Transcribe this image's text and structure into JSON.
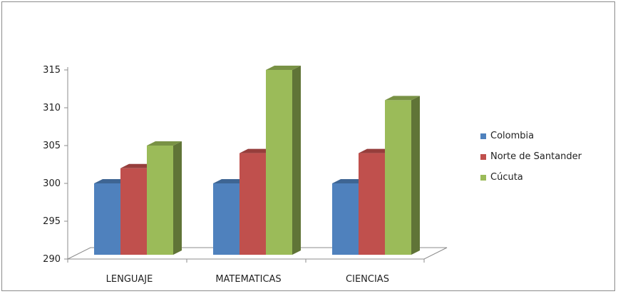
{
  "chart_data": {
    "type": "bar",
    "categories": [
      "LENGUAJE",
      "MATEMATICAS",
      "CIENCIAS"
    ],
    "series": [
      {
        "name": "Colombia",
        "values": [
          300,
          300,
          300
        ],
        "color": "#4F81BD"
      },
      {
        "name": "Norte de Santander",
        "values": [
          302,
          304,
          304
        ],
        "color": "#C0504D"
      },
      {
        "name": "Cúcuta",
        "values": [
          305,
          315,
          311
        ],
        "color": "#9BBB59"
      }
    ],
    "ylim": [
      290,
      315
    ],
    "yticks": [
      "290",
      "295",
      "300",
      "305",
      "310",
      "315"
    ],
    "legend_position": "right",
    "style": "3d-clustered-column"
  }
}
